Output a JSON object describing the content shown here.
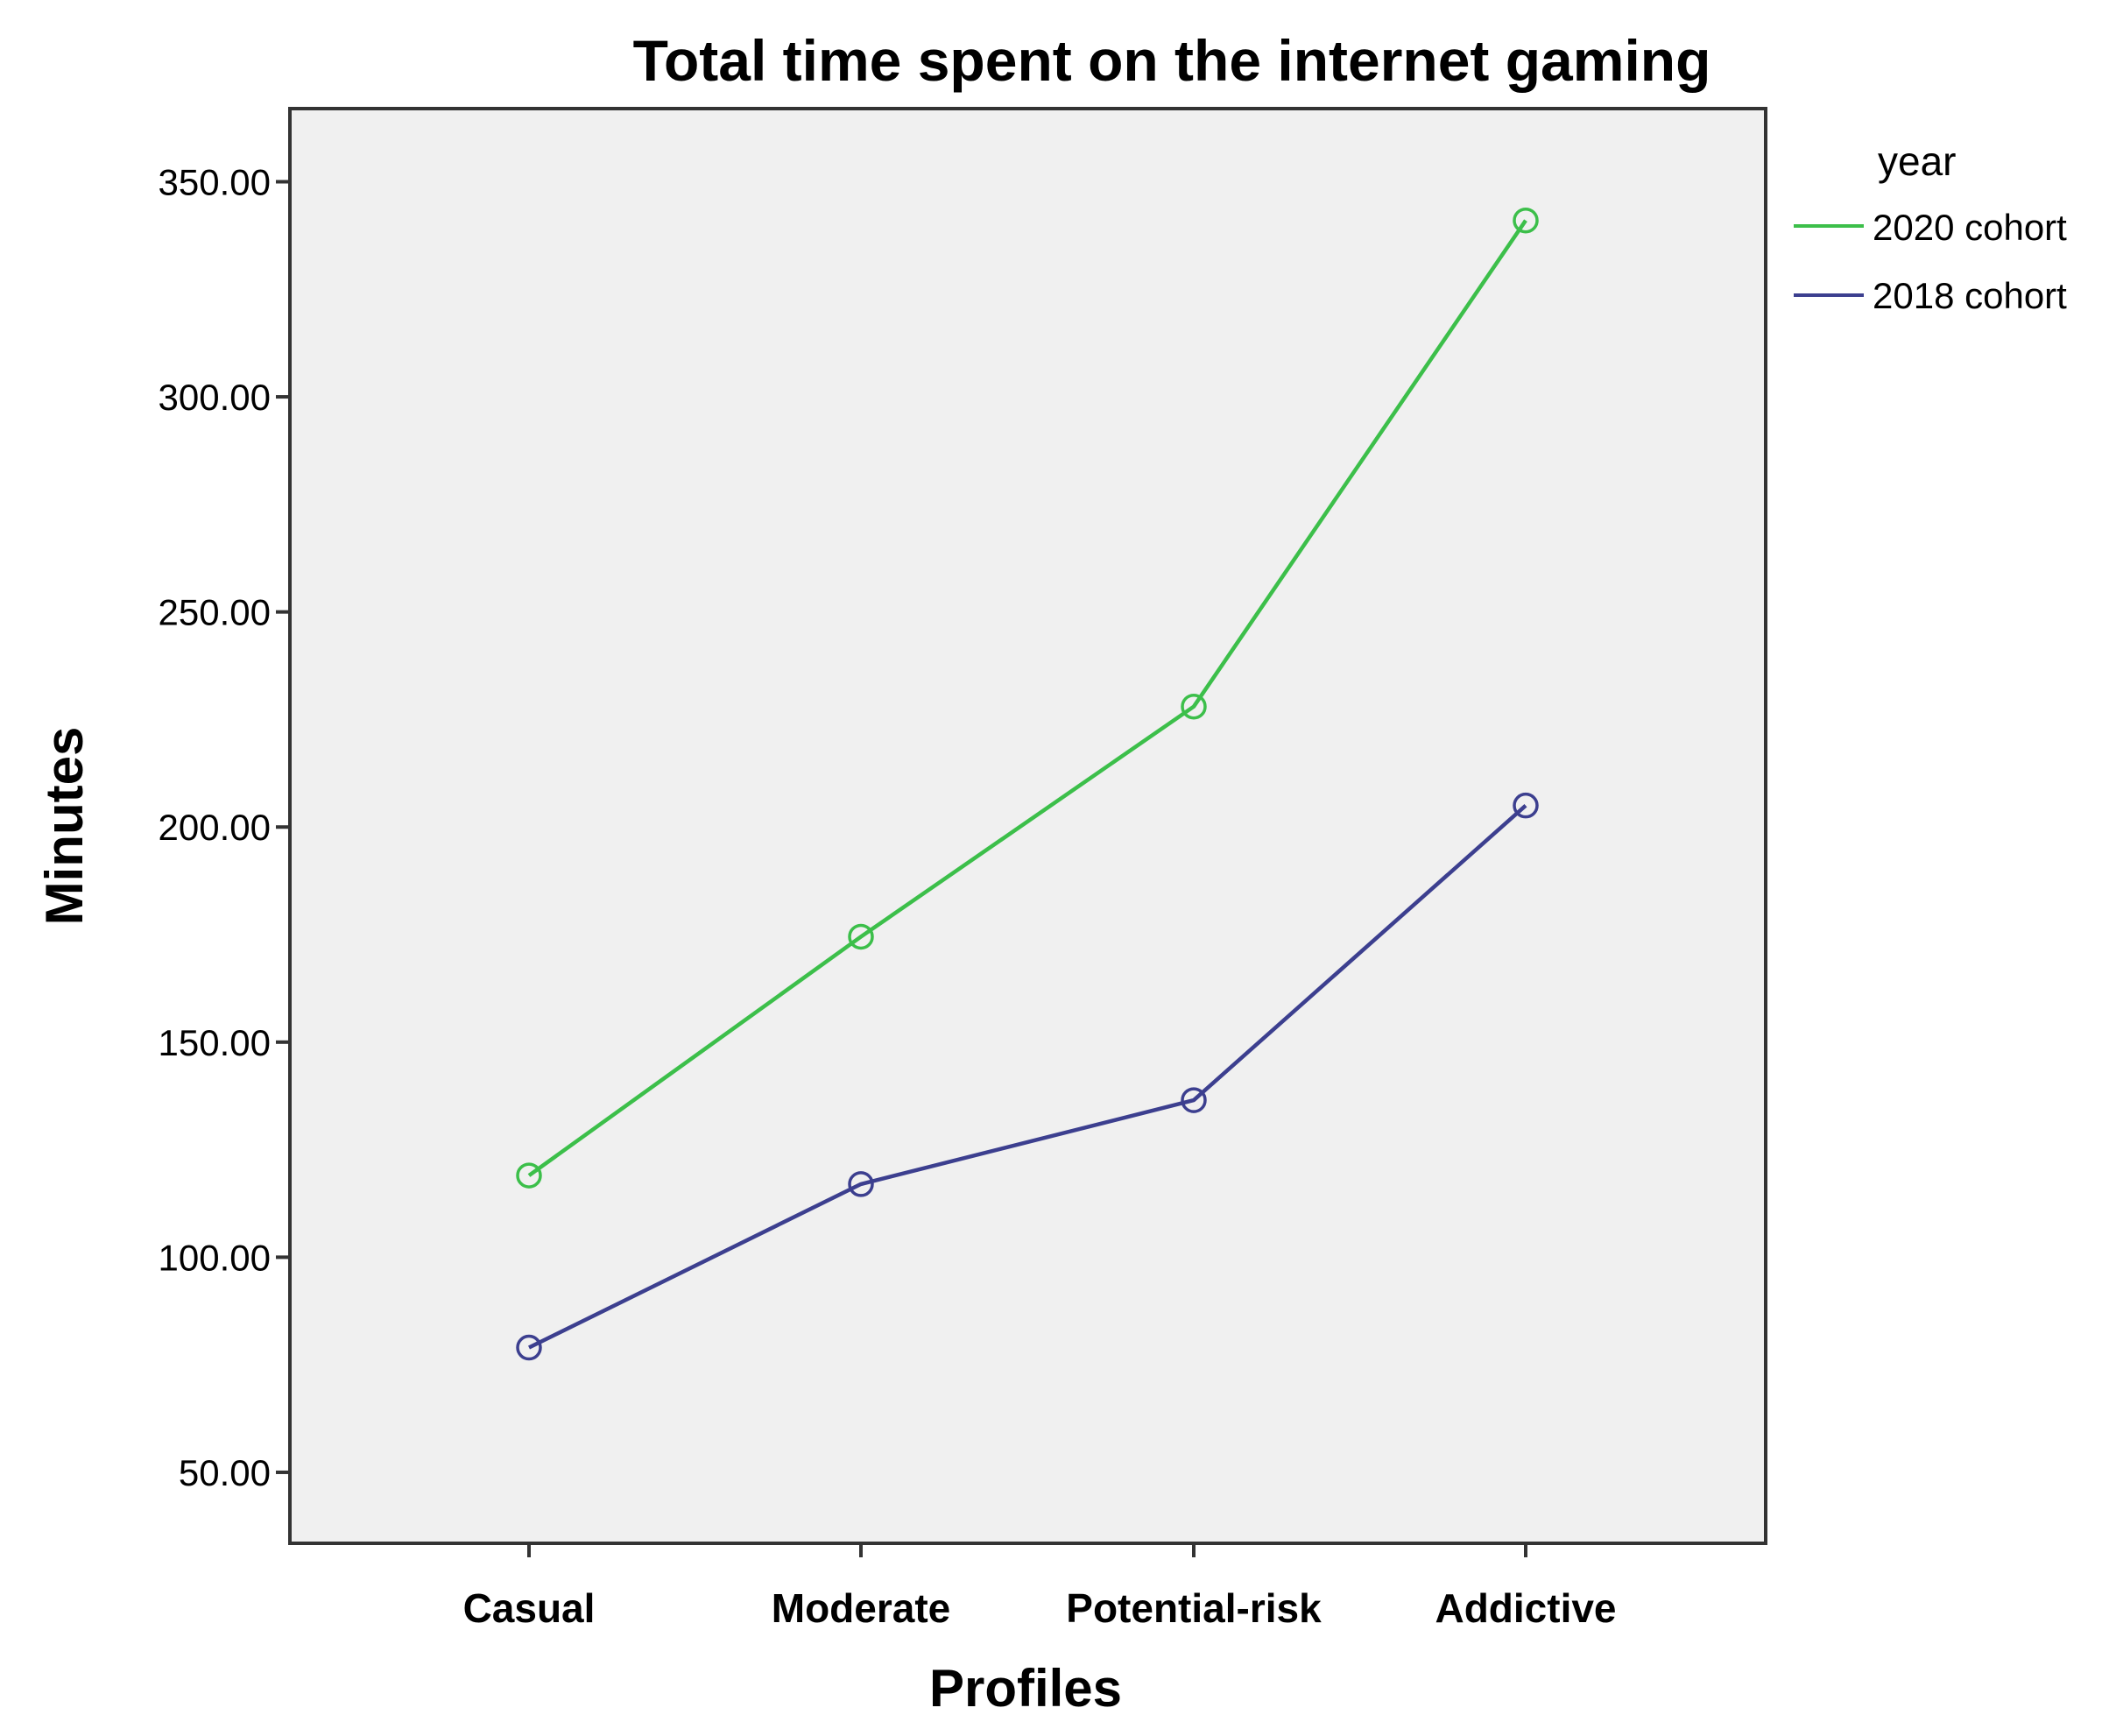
{
  "chart_data": {
    "type": "line",
    "title": "Total time spent on the internet gaming",
    "xlabel": "Profiles",
    "ylabel": "Minutes",
    "categories": [
      "Casual",
      "Moderate",
      "Potential-risk",
      "Addictive"
    ],
    "ylim": [
      33.5,
      367
    ],
    "yticks": [
      50,
      100,
      150,
      200,
      250,
      300,
      350
    ],
    "ytick_labels": [
      "50.00",
      "100.00",
      "150.00",
      "200.00",
      "250.00",
      "300.00",
      "350.00"
    ],
    "grid": false,
    "plot_background": "#f0f0f0",
    "legend": {
      "title": "year",
      "placement": "right",
      "entries": [
        "2020 cohort",
        "2018 cohort"
      ]
    },
    "series": [
      {
        "name": "2020 cohort",
        "color": "#3cbf4a",
        "marker": "open-circle",
        "values": [
          119,
          174.5,
          228,
          341
        ]
      },
      {
        "name": "2018 cohort",
        "color": "#3c3f8f",
        "marker": "open-circle",
        "values": [
          79,
          117,
          136.5,
          205
        ]
      }
    ]
  }
}
